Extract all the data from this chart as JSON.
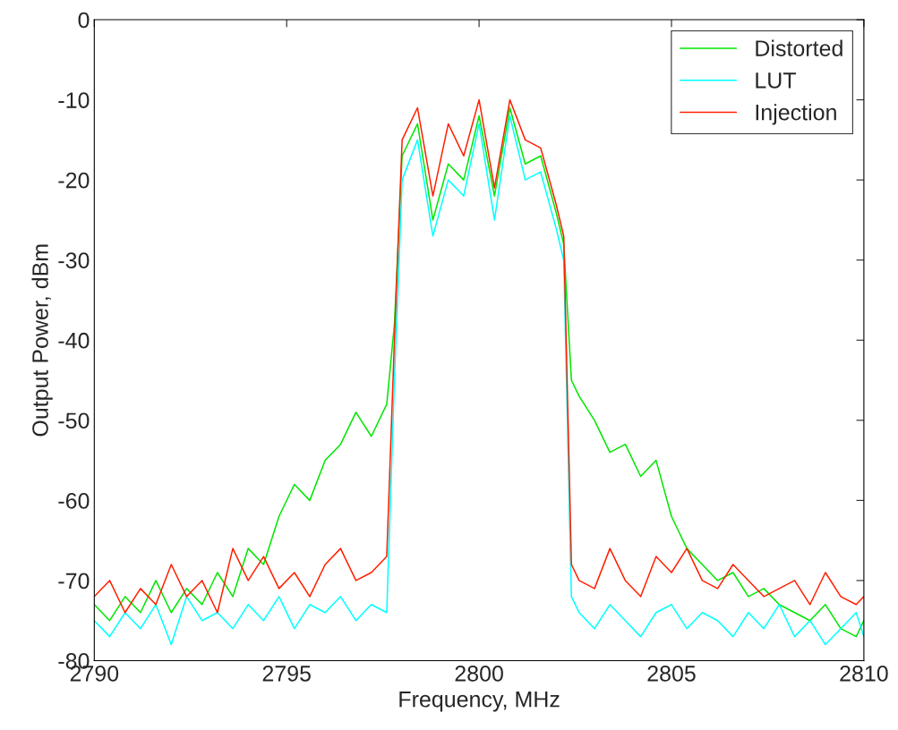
{
  "chart_data": {
    "type": "line",
    "xlabel": "Frequency, MHz",
    "ylabel": "Output Power, dBm",
    "x": [
      2790,
      2790.4,
      2790.8,
      2791.2,
      2791.6,
      2792,
      2792.4,
      2792.8,
      2793.2,
      2793.6,
      2794,
      2794.4,
      2794.8,
      2795.2,
      2795.6,
      2796,
      2796.4,
      2796.8,
      2797.2,
      2797.6,
      2797.8,
      2798,
      2798.4,
      2798.8,
      2799.2,
      2799.6,
      2800,
      2800.4,
      2800.8,
      2801.2,
      2801.6,
      2802,
      2802.2,
      2802.4,
      2802.6,
      2803,
      2803.4,
      2803.8,
      2804.2,
      2804.6,
      2805,
      2805.4,
      2805.8,
      2806.2,
      2806.6,
      2807,
      2807.4,
      2807.8,
      2808.2,
      2808.6,
      2809,
      2809.4,
      2809.8,
      2810
    ],
    "series": [
      {
        "name": "Distorted",
        "color": "#00e600",
        "values": [
          -73,
          -75,
          -72,
          -74,
          -70,
          -74,
          -71,
          -73,
          -69,
          -72,
          -66,
          -68,
          -62,
          -58,
          -60,
          -55,
          -53,
          -49,
          -52,
          -48,
          -38,
          -17,
          -13,
          -25,
          -18,
          -20,
          -12,
          -22,
          -11,
          -18,
          -17,
          -24,
          -28,
          -45,
          -47,
          -50,
          -54,
          -53,
          -57,
          -55,
          -62,
          -66,
          -68,
          -70,
          -69,
          -72,
          -71,
          -73,
          -74,
          -75,
          -73,
          -76,
          -77,
          -75
        ]
      },
      {
        "name": "LUT",
        "color": "#00ffff",
        "values": [
          -75,
          -77,
          -74,
          -76,
          -73,
          -78,
          -72,
          -75,
          -74,
          -76,
          -73,
          -75,
          -72,
          -76,
          -73,
          -74,
          -72,
          -75,
          -73,
          -74,
          -45,
          -20,
          -15,
          -27,
          -20,
          -22,
          -13,
          -25,
          -12,
          -20,
          -19,
          -26,
          -30,
          -72,
          -74,
          -76,
          -73,
          -75,
          -77,
          -74,
          -73,
          -76,
          -74,
          -75,
          -77,
          -74,
          -76,
          -73,
          -77,
          -75,
          -78,
          -76,
          -74,
          -77
        ]
      },
      {
        "name": "Injection",
        "color": "#ff2000",
        "values": [
          -72,
          -70,
          -74,
          -71,
          -73,
          -68,
          -72,
          -70,
          -74,
          -66,
          -70,
          -67,
          -71,
          -69,
          -72,
          -68,
          -66,
          -70,
          -69,
          -67,
          -40,
          -15,
          -11,
          -22,
          -13,
          -17,
          -10,
          -21,
          -10,
          -15,
          -16,
          -23,
          -27,
          -68,
          -70,
          -71,
          -66,
          -70,
          -72,
          -67,
          -69,
          -66,
          -70,
          -71,
          -68,
          -70,
          -72,
          -71,
          -70,
          -73,
          -69,
          -72,
          -73,
          -72
        ]
      }
    ],
    "xlim": [
      2790,
      2810
    ],
    "xticks": [
      2790,
      2795,
      2800,
      2805,
      2810
    ],
    "ylim": [
      -80,
      0
    ],
    "yticks": [
      -80,
      -70,
      -60,
      -50,
      -40,
      -30,
      -20,
      -10,
      0
    ],
    "grid": false,
    "legend": "top right",
    "marker": "none",
    "line_style": "solid"
  }
}
